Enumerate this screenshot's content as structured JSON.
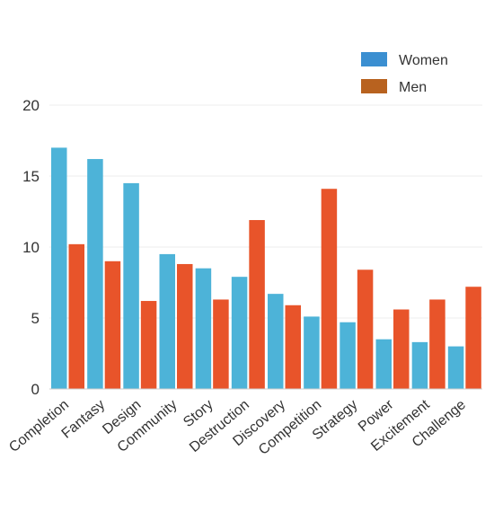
{
  "chart_data": {
    "type": "bar",
    "title": "",
    "xlabel": "",
    "ylabel": "",
    "ylim": [
      0,
      20
    ],
    "yticks": [
      0,
      5,
      10,
      15,
      20
    ],
    "grid": true,
    "legend_position": "top-right",
    "categories": [
      "Completion",
      "Fantasy",
      "Design",
      "Community",
      "Story",
      "Destruction",
      "Discovery",
      "Competition",
      "Strategy",
      "Power",
      "Excitement",
      "Challenge"
    ],
    "series": [
      {
        "name": "Women",
        "color": "#4db3d8",
        "values": [
          17.0,
          16.2,
          14.5,
          9.5,
          8.5,
          7.9,
          6.7,
          5.1,
          4.7,
          3.5,
          3.3,
          3.0
        ]
      },
      {
        "name": "Men",
        "color": "#e8542a",
        "values": [
          10.2,
          9.0,
          6.2,
          8.8,
          6.3,
          11.9,
          5.9,
          14.1,
          8.4,
          5.6,
          6.3,
          7.2
        ]
      }
    ],
    "legend_colors": [
      "#3b8fd1",
      "#b8621f"
    ]
  }
}
